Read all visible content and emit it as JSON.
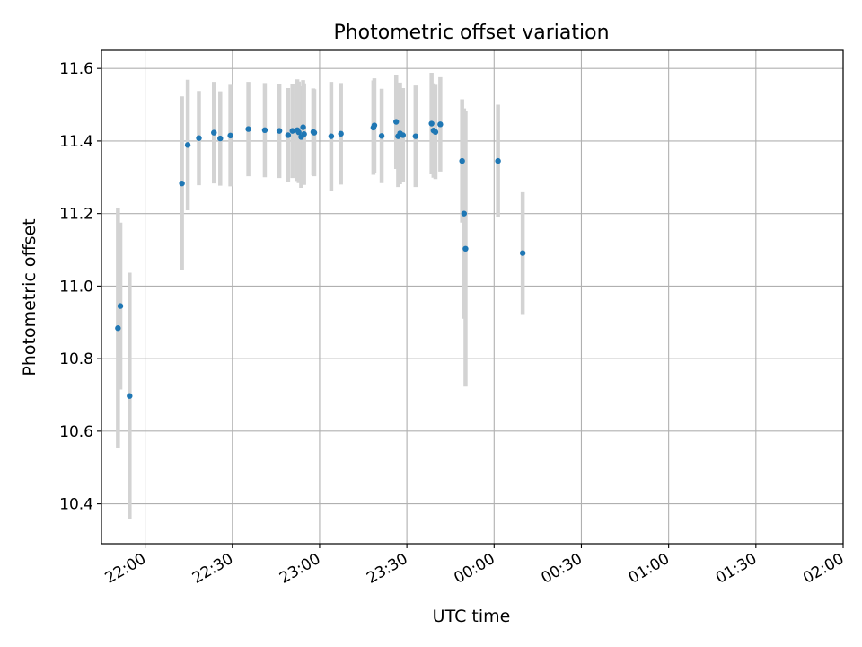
{
  "chart_data": {
    "type": "scatter",
    "title": "Photometric offset variation",
    "xlabel": "UTC time",
    "ylabel": "Photometric offset",
    "grid": true,
    "legend": "none",
    "x_axis": {
      "kind": "time",
      "range": [
        "21:45",
        "02:00"
      ],
      "ticks": [
        "22:00",
        "22:30",
        "23:00",
        "23:30",
        "00:00",
        "00:30",
        "01:00",
        "01:30",
        "02:00"
      ]
    },
    "y_axis": {
      "range": [
        10.29,
        11.65
      ],
      "ticks": [
        "10.4",
        "10.6",
        "10.8",
        "11.0",
        "11.2",
        "11.4",
        "11.6"
      ]
    },
    "point_color": "#1f77b4",
    "errorbar_color": "#d3d3d3",
    "series": [
      {
        "points": [
          {
            "x": "21:50:40",
            "y": 10.884,
            "yerr": 0.33
          },
          {
            "x": "21:51:30",
            "y": 10.945,
            "yerr": 0.23
          },
          {
            "x": "21:54:40",
            "y": 10.697,
            "yerr": 0.34
          },
          {
            "x": "22:12:40",
            "y": 11.283,
            "yerr": 0.24
          },
          {
            "x": "22:14:40",
            "y": 11.389,
            "yerr": 0.18
          },
          {
            "x": "22:18:30",
            "y": 11.408,
            "yerr": 0.13
          },
          {
            "x": "22:23:40",
            "y": 11.423,
            "yerr": 0.14
          },
          {
            "x": "22:25:50",
            "y": 11.407,
            "yerr": 0.13
          },
          {
            "x": "22:29:20",
            "y": 11.415,
            "yerr": 0.14
          },
          {
            "x": "22:35:30",
            "y": 11.433,
            "yerr": 0.13
          },
          {
            "x": "22:41:10",
            "y": 11.43,
            "yerr": 0.13
          },
          {
            "x": "22:46:10",
            "y": 11.428,
            "yerr": 0.13
          },
          {
            "x": "22:49:10",
            "y": 11.416,
            "yerr": 0.13
          },
          {
            "x": "22:50:40",
            "y": 11.428,
            "yerr": 0.13
          },
          {
            "x": "22:52:20",
            "y": 11.43,
            "yerr": 0.14
          },
          {
            "x": "22:52:50",
            "y": 11.424,
            "yerr": 0.14
          },
          {
            "x": "22:53:40",
            "y": 11.411,
            "yerr": 0.14
          },
          {
            "x": "22:54:20",
            "y": 11.438,
            "yerr": 0.13
          },
          {
            "x": "22:54:40",
            "y": 11.419,
            "yerr": 0.14
          },
          {
            "x": "22:57:50",
            "y": 11.425,
            "yerr": 0.12
          },
          {
            "x": "22:58:10",
            "y": 11.423,
            "yerr": 0.12
          },
          {
            "x": "23:04:00",
            "y": 11.413,
            "yerr": 0.15
          },
          {
            "x": "23:07:20",
            "y": 11.42,
            "yerr": 0.14
          },
          {
            "x": "23:18:30",
            "y": 11.437,
            "yerr": 0.13
          },
          {
            "x": "23:18:50",
            "y": 11.443,
            "yerr": 0.13
          },
          {
            "x": "23:21:20",
            "y": 11.414,
            "yerr": 0.13
          },
          {
            "x": "23:26:20",
            "y": 11.453,
            "yerr": 0.13
          },
          {
            "x": "23:27:00",
            "y": 11.413,
            "yerr": 0.14
          },
          {
            "x": "23:27:40",
            "y": 11.421,
            "yerr": 0.14
          },
          {
            "x": "23:28:40",
            "y": 11.416,
            "yerr": 0.13
          },
          {
            "x": "23:33:00",
            "y": 11.413,
            "yerr": 0.14
          },
          {
            "x": "23:38:30",
            "y": 11.448,
            "yerr": 0.14
          },
          {
            "x": "23:39:10",
            "y": 11.429,
            "yerr": 0.13
          },
          {
            "x": "23:39:50",
            "y": 11.425,
            "yerr": 0.13
          },
          {
            "x": "23:41:30",
            "y": 11.446,
            "yerr": 0.13
          },
          {
            "x": "23:49:00",
            "y": 11.345,
            "yerr": 0.17
          },
          {
            "x": "23:49:40",
            "y": 11.2,
            "yerr": 0.29
          },
          {
            "x": "23:50:10",
            "y": 11.103,
            "yerr": 0.38
          },
          {
            "x": "24:01:20",
            "y": 11.345,
            "yerr": 0.155
          },
          {
            "x": "24:09:50",
            "y": 11.091,
            "yerr": 0.168
          }
        ]
      }
    ]
  }
}
